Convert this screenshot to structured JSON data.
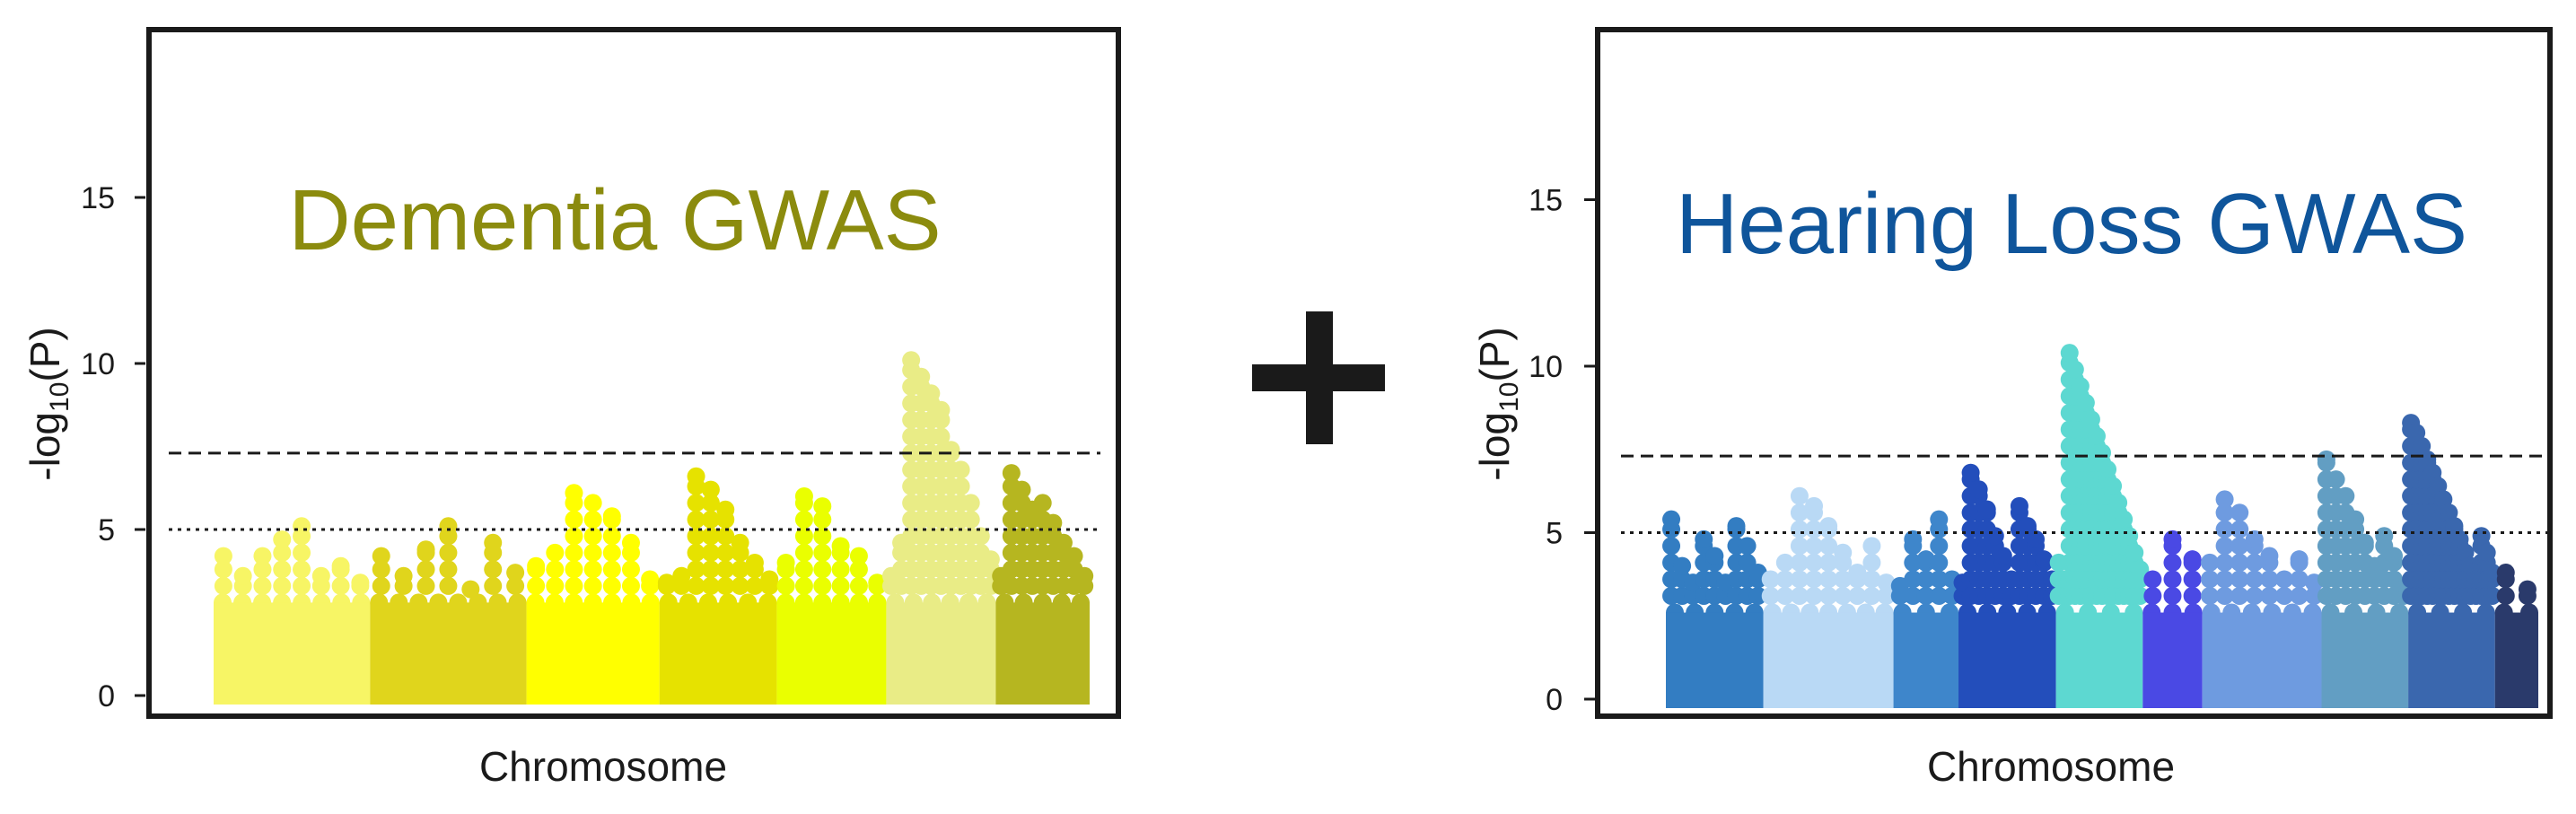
{
  "colors": {
    "dementia_title": "#8b8b0e",
    "hearing_title": "#0f559b",
    "frame": "#1a1a1a",
    "plus": "#1a1a1a"
  },
  "plus_sign": "+",
  "chart_data": [
    {
      "type": "scatter",
      "subtype": "manhattan",
      "title": "Dementia GWAS",
      "xlabel": "Chromosome",
      "ylabel_prefix": "-log",
      "ylabel_subscript": "10",
      "ylabel_suffix": "(P)",
      "ylim": [
        0,
        20
      ],
      "yticks": [
        0,
        5,
        10,
        15
      ],
      "thresholds": [
        {
          "value": 7.3,
          "style": "dashed"
        },
        {
          "value": 5,
          "style": "dotted"
        }
      ],
      "grid": false,
      "background_level": 2.8,
      "groups": [
        {
          "width": 1.0,
          "color": "#f7f565",
          "points": [
            4.2,
            3.6,
            4.2,
            4.7,
            5.1,
            3.6,
            3.9,
            3.4
          ]
        },
        {
          "width": 1.0,
          "color": "#e0d51c",
          "points": [
            4.2,
            3.6,
            4.4,
            5.1,
            3.2,
            4.6,
            3.7
          ]
        },
        {
          "width": 0.85,
          "color": "#ffff00",
          "points": [
            3.9,
            4.3,
            6.1,
            5.8,
            5.4,
            4.6,
            3.5
          ]
        },
        {
          "width": 0.75,
          "color": "#e6e200",
          "points": [
            3.4,
            3.6,
            6.6,
            6.2,
            5.6,
            4.6,
            4.0,
            3.5
          ]
        },
        {
          "width": 0.7,
          "color": "#eaff00",
          "points": [
            4.0,
            6.0,
            5.7,
            4.5,
            4.2,
            3.4
          ]
        },
        {
          "width": 0.7,
          "color": "#e9ec86",
          "points": [
            3.6,
            4.6,
            10.1,
            9.6,
            9.1,
            8.6,
            7.4,
            6.8,
            5.8,
            4.8,
            4.1
          ]
        },
        {
          "width": 0.6,
          "color": "#b6b620",
          "points": [
            3.6,
            6.7,
            6.2,
            5.6,
            5.8,
            5.2,
            4.6,
            4.2,
            3.6
          ]
        }
      ]
    },
    {
      "type": "scatter",
      "subtype": "manhattan",
      "title": "Hearing Loss GWAS",
      "xlabel": "Chromosome",
      "ylabel_prefix": "-log",
      "ylabel_subscript": "10",
      "ylabel_suffix": "(P)",
      "ylim": [
        0,
        20
      ],
      "yticks": [
        0,
        5,
        10,
        15
      ],
      "thresholds": [
        {
          "value": 7.3,
          "style": "dashed"
        },
        {
          "value": 5,
          "style": "dotted"
        }
      ],
      "grid": false,
      "background_level": 2.6,
      "groups": [
        {
          "width": 0.9,
          "color": "#337dc2",
          "points": [
            5.4,
            4.0,
            3.5,
            4.8,
            4.3,
            3.5,
            5.2,
            4.6,
            3.8
          ]
        },
        {
          "width": 1.2,
          "color": "#b9d9f5",
          "points": [
            3.6,
            4.1,
            6.1,
            5.8,
            5.2,
            4.4,
            3.8,
            4.6,
            3.5
          ]
        },
        {
          "width": 0.6,
          "color": "#3e86cb",
          "points": [
            3.4,
            4.8,
            4.2,
            5.4,
            3.6
          ]
        },
        {
          "width": 0.9,
          "color": "#234ebb",
          "points": [
            3.5,
            6.8,
            6.3,
            5.7,
            4.9,
            4.3,
            3.6,
            5.8,
            5.2,
            4.8,
            4.2,
            3.6
          ]
        },
        {
          "width": 0.8,
          "color": "#5dd8d1",
          "points": [
            4.1,
            3.6,
            10.4,
            9.9,
            9.4,
            8.9,
            8.4,
            7.9,
            7.4,
            6.9,
            6.4,
            5.9,
            5.4,
            4.9,
            4.4,
            3.9
          ]
        },
        {
          "width": 0.55,
          "color": "#4a49e4",
          "points": [
            3.6,
            4.8,
            4.2
          ]
        },
        {
          "width": 1.1,
          "color": "#6e9be0",
          "points": [
            4.1,
            6.0,
            5.6,
            4.8,
            4.3,
            3.6,
            4.2,
            3.5
          ]
        },
        {
          "width": 0.8,
          "color": "#629ec3",
          "points": [
            7.2,
            6.6,
            6.1,
            5.4,
            4.7,
            4.0,
            4.9,
            4.3,
            3.4
          ]
        },
        {
          "width": 0.8,
          "color": "#3a67ae",
          "points": [
            8.3,
            8.0,
            7.6,
            7.2,
            6.8,
            6.4,
            6.0,
            5.6,
            5.2,
            4.8,
            4.4,
            4.0,
            3.6,
            4.9,
            4.4,
            3.8
          ]
        },
        {
          "width": 0.4,
          "color": "#2a3a6b",
          "points": [
            3.8,
            3.3
          ]
        }
      ]
    }
  ]
}
